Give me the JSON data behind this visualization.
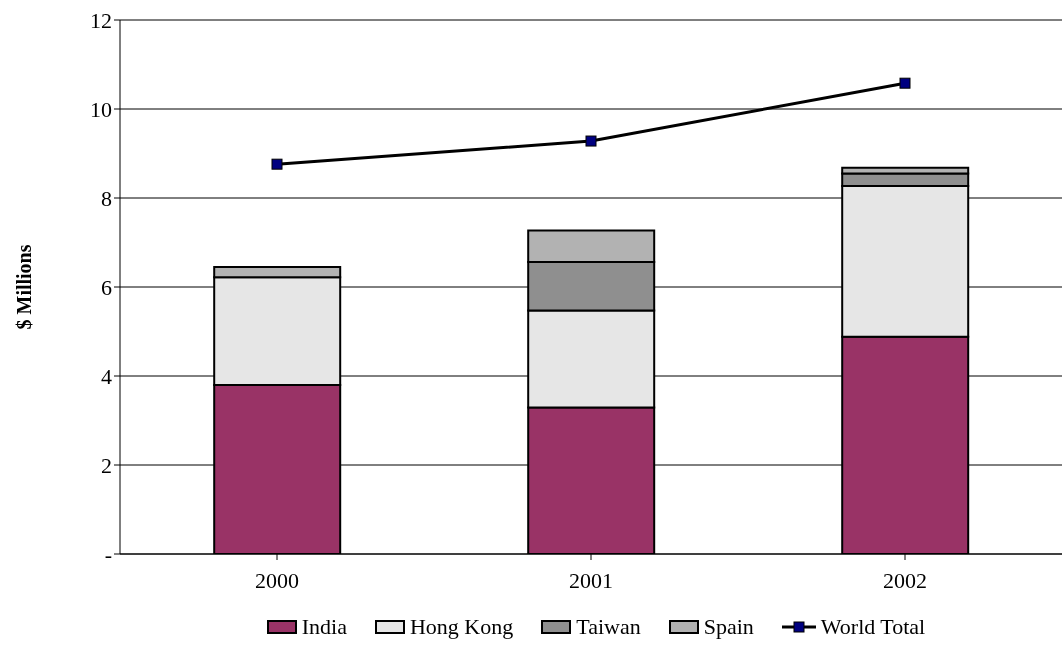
{
  "chart_data": {
    "type": "bar",
    "stacked": true,
    "ylabel": "$ Millions",
    "categories": [
      "2000",
      "2001",
      "2002"
    ],
    "series": [
      {
        "name": "India",
        "color": "#993366",
        "values": [
          3.8,
          3.29,
          4.88
        ]
      },
      {
        "name": "Hong Kong",
        "color": "#e6e6e6",
        "values": [
          2.42,
          2.18,
          3.39
        ]
      },
      {
        "name": "Taiwan",
        "color": "#8f8f8f",
        "values": [
          0,
          1.09,
          0.28
        ]
      },
      {
        "name": "Spain",
        "color": "#b2b2b2",
        "values": [
          0.23,
          0.71,
          0.13
        ]
      },
      {
        "name": "World Total",
        "type": "line",
        "color": "#000000",
        "values": [
          8.76,
          9.28,
          10.58
        ]
      }
    ],
    "ylim": [
      0,
      12
    ],
    "yticks": [
      {
        "value": 0,
        "label": "-"
      },
      2,
      4,
      6,
      8,
      10,
      12
    ],
    "grid": "y",
    "legend": "bottom",
    "marker": "square"
  }
}
